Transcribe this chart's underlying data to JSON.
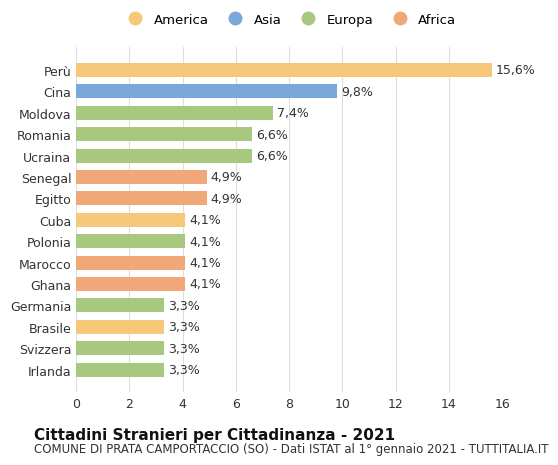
{
  "categories": [
    "Irlanda",
    "Svizzera",
    "Brasile",
    "Germania",
    "Ghana",
    "Marocco",
    "Polonia",
    "Cuba",
    "Egitto",
    "Senegal",
    "Ucraina",
    "Romania",
    "Moldova",
    "Cina",
    "Perù"
  ],
  "values": [
    3.3,
    3.3,
    3.3,
    3.3,
    4.1,
    4.1,
    4.1,
    4.1,
    4.9,
    4.9,
    6.6,
    6.6,
    7.4,
    9.8,
    15.6
  ],
  "labels": [
    "3,3%",
    "3,3%",
    "3,3%",
    "3,3%",
    "4,1%",
    "4,1%",
    "4,1%",
    "4,1%",
    "4,9%",
    "4,9%",
    "6,6%",
    "6,6%",
    "7,4%",
    "9,8%",
    "15,6%"
  ],
  "colors": [
    "#a8c880",
    "#a8c880",
    "#f5c87a",
    "#a8c880",
    "#f0a878",
    "#f0a878",
    "#a8c880",
    "#f5c87a",
    "#f0a878",
    "#f0a878",
    "#a8c880",
    "#a8c880",
    "#a8c880",
    "#7aa8d8",
    "#f5c87a"
  ],
  "continent_colors": {
    "America": "#f5c87a",
    "Asia": "#7aa8d8",
    "Europa": "#a8c880",
    "Africa": "#f0a878"
  },
  "legend_labels": [
    "America",
    "Asia",
    "Europa",
    "Africa"
  ],
  "title": "Cittadini Stranieri per Cittadinanza - 2021",
  "subtitle": "COMUNE DI PRATA CAMPORTACCIO (SO) - Dati ISTAT al 1° gennaio 2021 - TUTTITALIA.IT",
  "xlim": [
    0,
    16
  ],
  "xticks": [
    0,
    2,
    4,
    6,
    8,
    10,
    12,
    14,
    16
  ],
  "background_color": "#ffffff",
  "grid_color": "#dddddd",
  "bar_height": 0.65,
  "label_fontsize": 9,
  "tick_fontsize": 9,
  "title_fontsize": 11,
  "subtitle_fontsize": 8.5
}
